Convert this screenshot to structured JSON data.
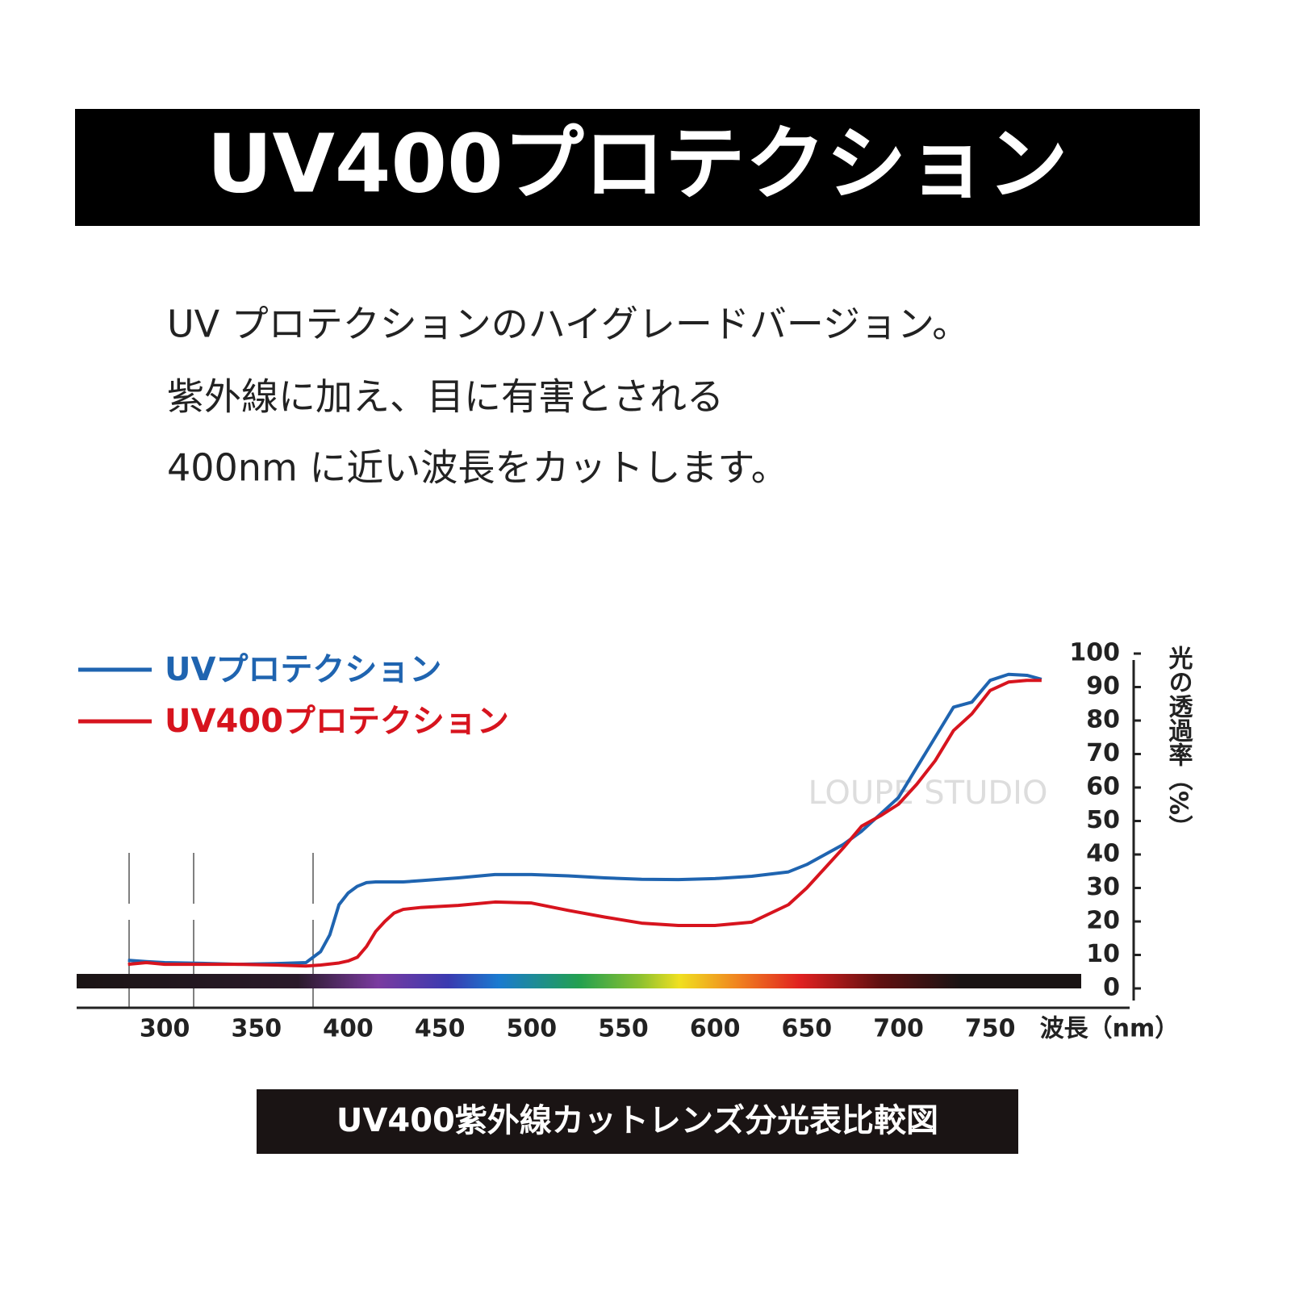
{
  "header": {
    "title": "UV400プロテクション"
  },
  "description": {
    "lines": [
      "UV プロテクションのハイグレードバージョン。",
      "紫外線に加え、目に有害とされる",
      "400nm に近い波長をカットします。"
    ]
  },
  "watermark": "LOUPE STUDIO",
  "chart_data": {
    "type": "line",
    "x": [
      280,
      290,
      300,
      320,
      340,
      360,
      377,
      385,
      390,
      395,
      400,
      405,
      410,
      415,
      420,
      425,
      430,
      440,
      460,
      480,
      500,
      520,
      540,
      560,
      580,
      600,
      620,
      640,
      650,
      660,
      670,
      680,
      690,
      700,
      710,
      720,
      730,
      740,
      750,
      760,
      770,
      778
    ],
    "series": [
      {
        "name": "UVプロテクション",
        "color": "#1f64b0",
        "values": [
          8.4,
          8,
          7.7,
          7.5,
          7.2,
          7.4,
          7.7,
          11,
          16,
          25,
          28.5,
          30.5,
          31.6,
          31.8,
          31.8,
          31.8,
          31.8,
          32.2,
          33,
          34,
          34,
          33.6,
          33,
          32.6,
          32.5,
          32.8,
          33.5,
          34.8,
          37,
          40,
          43,
          47,
          52,
          57,
          66,
          75,
          84,
          85.5,
          92,
          93.8,
          93.5,
          92.3
        ]
      },
      {
        "name": "UV400プロテクション",
        "color": "#d7141e",
        "values": [
          7.2,
          7.7,
          7.2,
          7.2,
          7.2,
          7,
          6.7,
          7,
          7.3,
          7.6,
          8.2,
          9.3,
          12.5,
          17,
          20,
          22.5,
          23.6,
          24.2,
          24.8,
          25.8,
          25.5,
          23.3,
          21.3,
          19.5,
          18.8,
          18.8,
          19.8,
          25,
          30,
          36,
          42,
          48.5,
          51.5,
          55,
          61,
          68,
          77,
          82,
          89,
          91.5,
          92,
          92
        ]
      }
    ],
    "xlim": [
      252,
      826
    ],
    "xticks": [
      300,
      350,
      400,
      450,
      500,
      550,
      600,
      650,
      700,
      750
    ],
    "ylim": [
      0,
      100
    ],
    "yticks": [
      0,
      10,
      20,
      30,
      40,
      50,
      60,
      70,
      80,
      90,
      100
    ],
    "x_label": "波長（nm）",
    "y_label": "光の透過率（%）",
    "caption": "UV400紫外線カットレンズ分光表比較図"
  }
}
